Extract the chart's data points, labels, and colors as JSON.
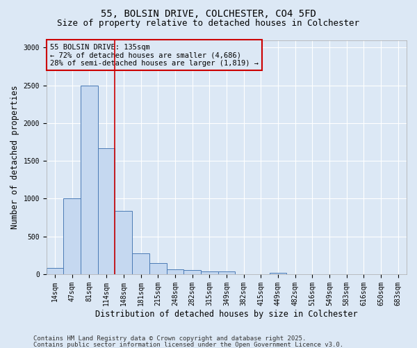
{
  "title1": "55, BOLSIN DRIVE, COLCHESTER, CO4 5FD",
  "title2": "Size of property relative to detached houses in Colchester",
  "xlabel": "Distribution of detached houses by size in Colchester",
  "ylabel": "Number of detached properties",
  "categories": [
    "14sqm",
    "47sqm",
    "81sqm",
    "114sqm",
    "148sqm",
    "181sqm",
    "215sqm",
    "248sqm",
    "282sqm",
    "315sqm",
    "349sqm",
    "382sqm",
    "415sqm",
    "449sqm",
    "482sqm",
    "516sqm",
    "549sqm",
    "583sqm",
    "616sqm",
    "650sqm",
    "683sqm"
  ],
  "values": [
    80,
    1005,
    2500,
    1670,
    840,
    280,
    150,
    62,
    55,
    35,
    40,
    0,
    0,
    20,
    0,
    0,
    0,
    0,
    0,
    0,
    0
  ],
  "bar_color": "#c5d8f0",
  "bar_edge_color": "#4a7ab5",
  "red_line_x": 3.5,
  "annotation_title": "55 BOLSIN DRIVE: 135sqm",
  "annotation_line1": "← 72% of detached houses are smaller (4,686)",
  "annotation_line2": "28% of semi-detached houses are larger (1,819) →",
  "footnote1": "Contains HM Land Registry data © Crown copyright and database right 2025.",
  "footnote2": "Contains public sector information licensed under the Open Government Licence v3.0.",
  "ylim": [
    0,
    3100
  ],
  "yticks": [
    0,
    500,
    1000,
    1500,
    2000,
    2500,
    3000
  ],
  "plot_bg_color": "#dce8f5",
  "fig_bg_color": "#dce8f5",
  "grid_color": "#ffffff",
  "title_fontsize": 10,
  "subtitle_fontsize": 9,
  "axis_label_fontsize": 8.5,
  "tick_fontsize": 7,
  "annotation_fontsize": 7.5,
  "footnote_fontsize": 6.5,
  "red_color": "#cc0000"
}
